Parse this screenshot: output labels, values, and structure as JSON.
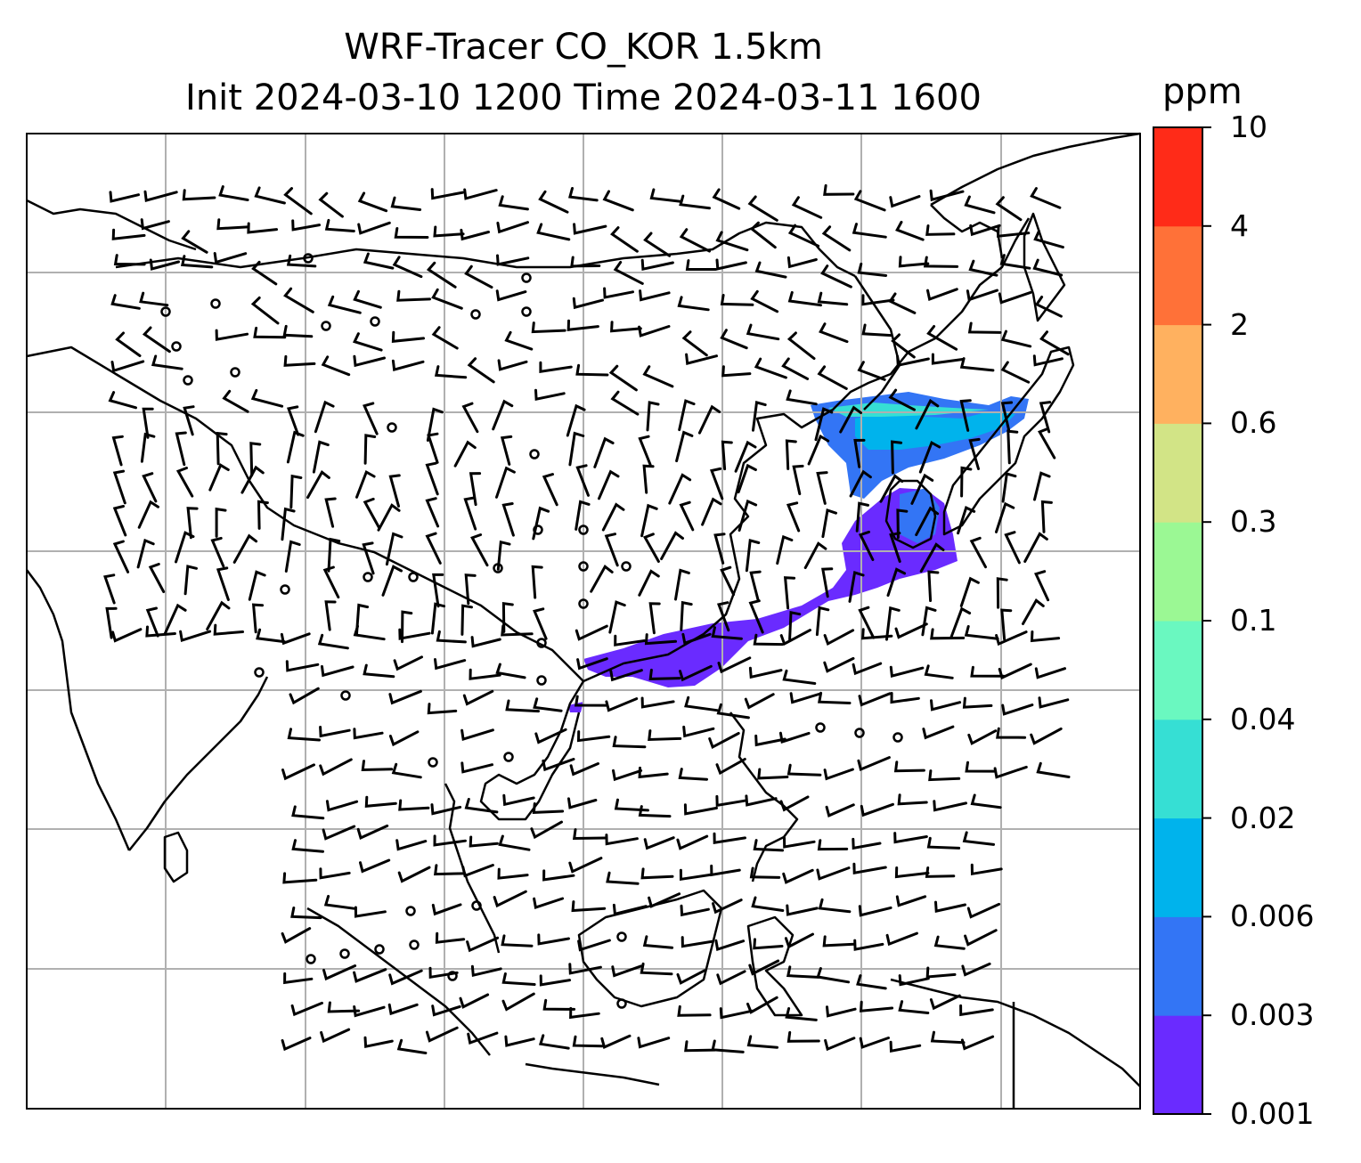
{
  "title": {
    "line1": "WRF-Tracer CO_KOR 1.5km",
    "line2": "Init 2024-03-10 1200 Time 2024-03-11 1600"
  },
  "colorbar": {
    "unit": "ppm",
    "levels": [
      "0.001",
      "0.003",
      "0.006",
      "0.02",
      "0.04",
      "0.1",
      "0.3",
      "0.6",
      "2",
      "4",
      "10"
    ],
    "colors": [
      "#6a2bff",
      "#3375f5",
      "#00b3ec",
      "#36dfd4",
      "#6af8c0",
      "#9bf894",
      "#d2e486",
      "#ffb15f",
      "#ff7138",
      "#ff2b18"
    ]
  },
  "map": {
    "land_outline_color": "#000000",
    "grid_color": "#b0b0b0",
    "plume_color": "#6a2bff",
    "plume_core_color": "#3375f5",
    "plume_edge_color": "#00b3ec",
    "wind_barbs": true,
    "gridlines": true
  }
}
